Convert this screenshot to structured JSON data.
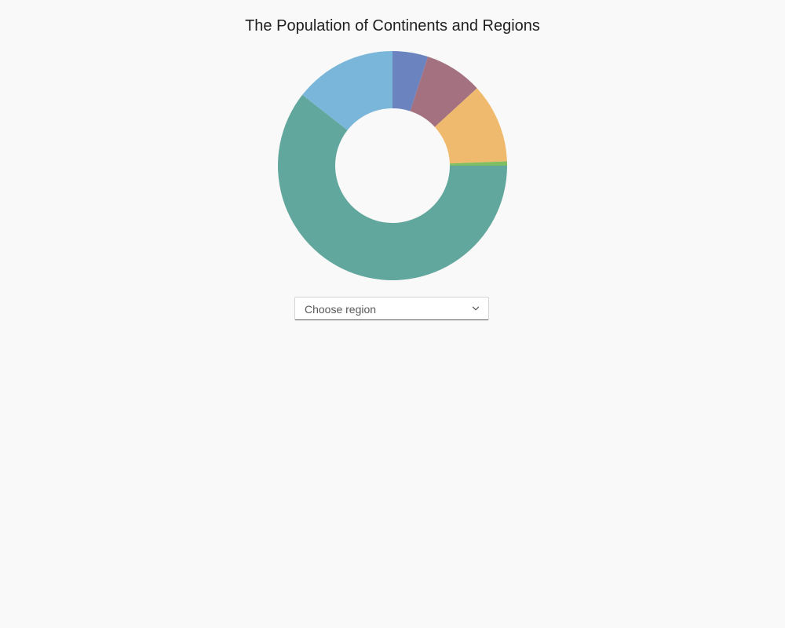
{
  "title": "The Population of Continents and Regions",
  "region_select": {
    "placeholder": "Choose region"
  },
  "chart_data": {
    "type": "pie",
    "donut": true,
    "start_angle_deg": 0,
    "slices": [
      {
        "value": 5.0,
        "color": "#6b84bf"
      },
      {
        "value": 8.2,
        "color": "#a3717f"
      },
      {
        "value": 11.2,
        "color": "#efba6d"
      },
      {
        "value": 0.6,
        "color": "#7fbf62"
      },
      {
        "value": 60.6,
        "color": "#62a79d"
      },
      {
        "value": 14.4,
        "color": "#7ab6da"
      }
    ]
  }
}
